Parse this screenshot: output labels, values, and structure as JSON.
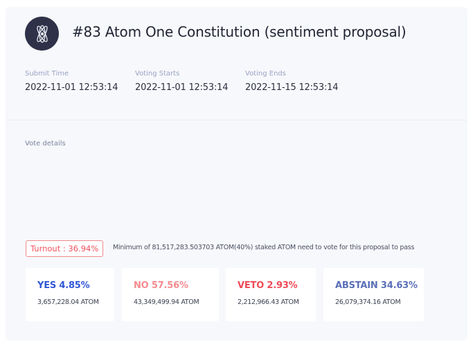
{
  "proposal": {
    "title": "#83 Atom One Constitution (sentiment proposal)",
    "logo_icon": "cosmos-atom-icon"
  },
  "meta": [
    {
      "label": "Submit Time",
      "value": "2022-11-01 12:53:14"
    },
    {
      "label": "Voting Starts",
      "value": "2022-11-01 12:53:14"
    },
    {
      "label": "Voting Ends",
      "value": "2022-11-15 12:53:14"
    }
  ],
  "vote_details": {
    "label": "Vote details",
    "turnout": "Turnout : 36.94%",
    "turnout_note": "Minimum of 81,517,283.503703 ATOM(40%) staked ATOM need to vote for this proposal to pass",
    "options": [
      {
        "title": "YES 4.85%",
        "amount": "3,657,228.04 ATOM",
        "color": "#2f57d6"
      },
      {
        "title": "NO 57.56%",
        "amount": "43,349,499.94 ATOM",
        "color": "#f48a8e"
      },
      {
        "title": "VETO 2.93%",
        "amount": "2,212,966.43 ATOM",
        "color": "#ee4a55"
      },
      {
        "title": "ABSTAIN 34.63%",
        "amount": "26,079,374.16 ATOM",
        "color": "#5a6fb8"
      }
    ]
  },
  "colors": {
    "card_background": "#f7f8fb",
    "logo_background": "#2e3148",
    "turnout_red": "#f0525c"
  }
}
